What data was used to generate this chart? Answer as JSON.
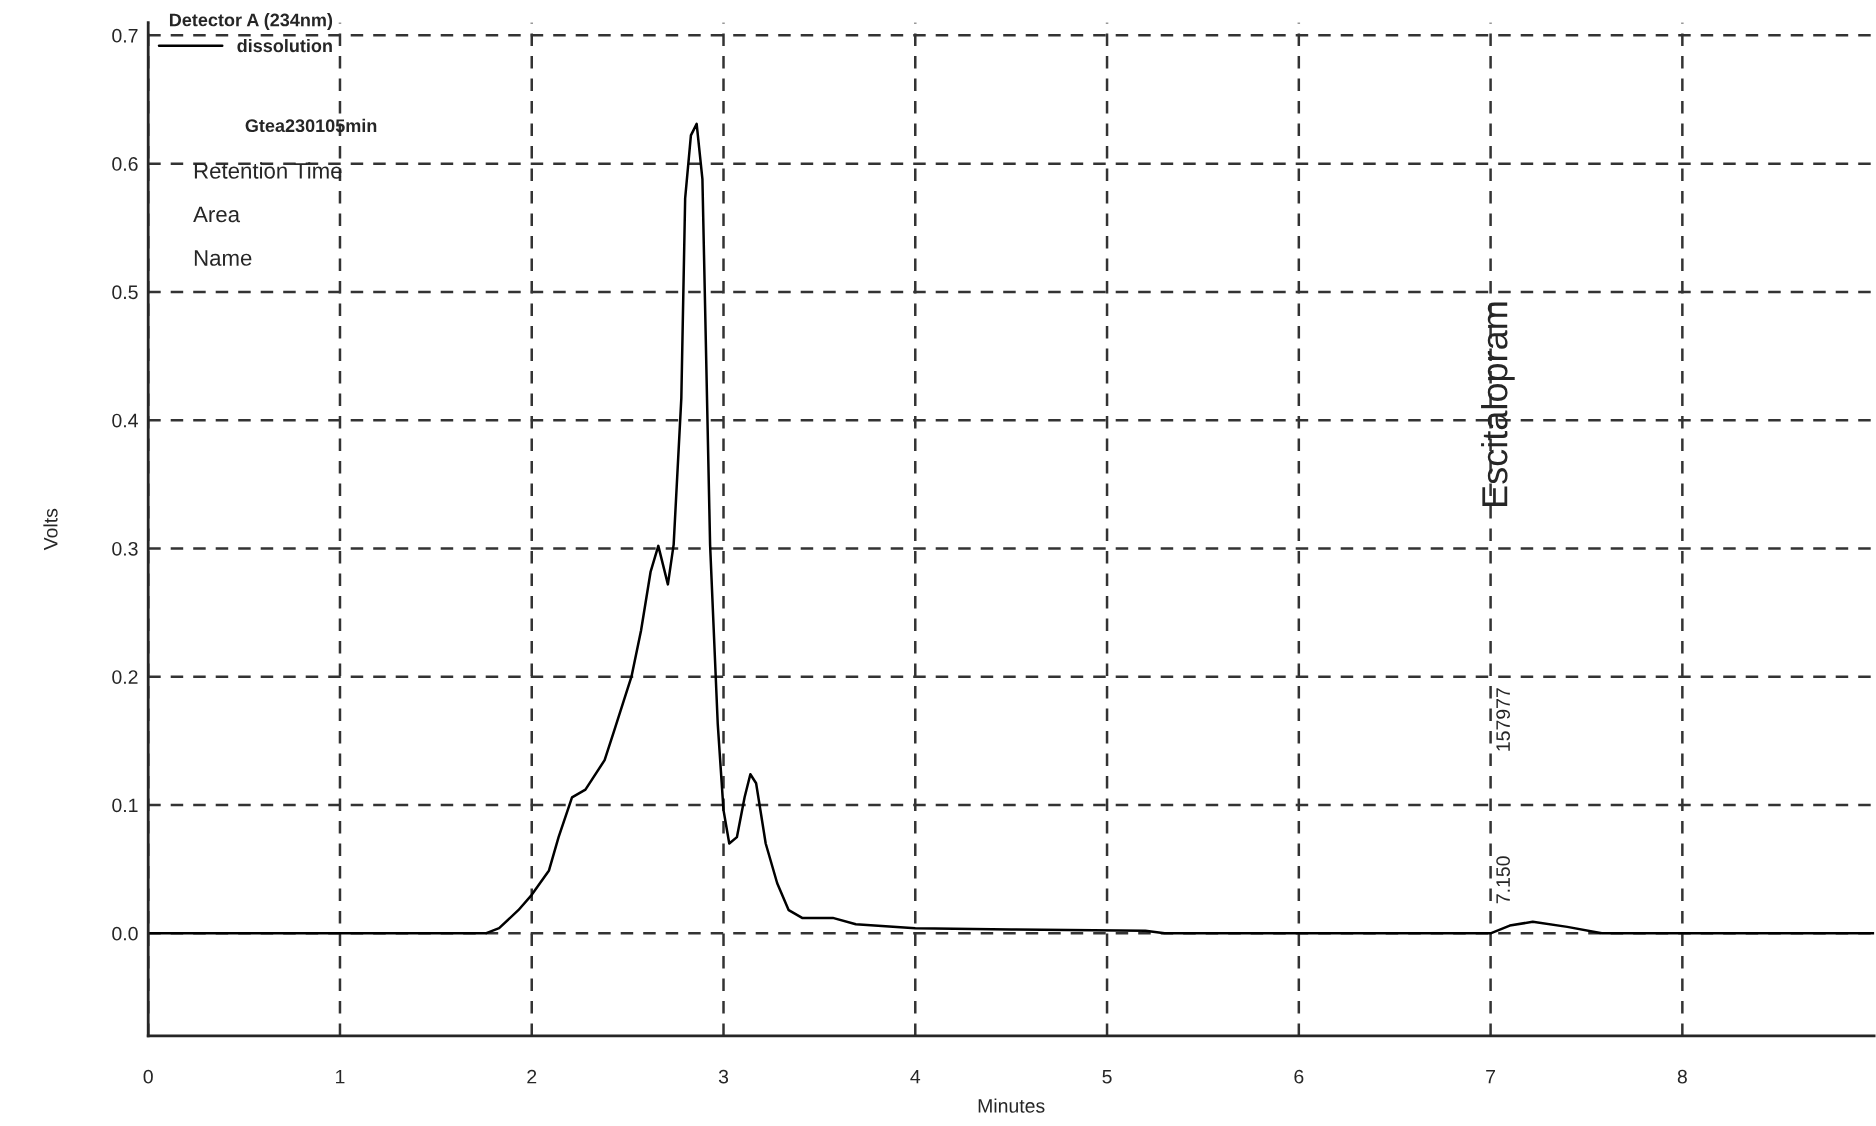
{
  "chart_data": {
    "type": "line",
    "xlabel": "Minutes",
    "ylabel": "Volts",
    "legend_title": "Detector A (234nm)",
    "xlim": [
      0,
      9
    ],
    "ylim": [
      -0.08,
      0.71
    ],
    "xticks": [
      0,
      1,
      2,
      3,
      4,
      5,
      6,
      7,
      8
    ],
    "yticks": [
      {
        "value": 0,
        "label": "0.0"
      },
      0.1,
      0.2,
      0.3,
      0.4,
      0.5,
      0.6,
      0.7
    ],
    "grid": true,
    "legend": "top left",
    "line_style": "solid",
    "marker": "none",
    "series": [
      {
        "name": "dissolution",
        "color": "#000000",
        "x": [
          0,
          1.76,
          1.83,
          1.93,
          2.0,
          2.09,
          2.14,
          2.21,
          2.28,
          2.38,
          2.43,
          2.52,
          2.57,
          2.62,
          2.66,
          2.71,
          2.74,
          2.78,
          2.8,
          2.83,
          2.86,
          2.89,
          2.93,
          2.97,
          3.0,
          3.03,
          3.07,
          3.11,
          3.14,
          3.17,
          3.22,
          3.28,
          3.34,
          3.41,
          3.57,
          3.69,
          4.0,
          4.5,
          5.2,
          5.3,
          7.0,
          7.1,
          7.22,
          7.4,
          7.58,
          9.0
        ],
        "values": [
          0,
          0,
          0.004,
          0.018,
          0.03,
          0.049,
          0.075,
          0.106,
          0.112,
          0.135,
          0.158,
          0.2,
          0.236,
          0.282,
          0.302,
          0.272,
          0.303,
          0.417,
          0.573,
          0.622,
          0.631,
          0.588,
          0.303,
          0.163,
          0.096,
          0.07,
          0.075,
          0.106,
          0.124,
          0.117,
          0.07,
          0.039,
          0.018,
          0.012,
          0.012,
          0.007,
          0.004,
          0.003,
          0.002,
          0,
          0,
          0.006,
          0.009,
          0.005,
          0,
          0
        ]
      }
    ],
    "annotations": [
      "Gtea230105min",
      "Retention Time",
      "Area",
      "Name",
      "7.150",
      "157977",
      "Escitalopram"
    ]
  }
}
